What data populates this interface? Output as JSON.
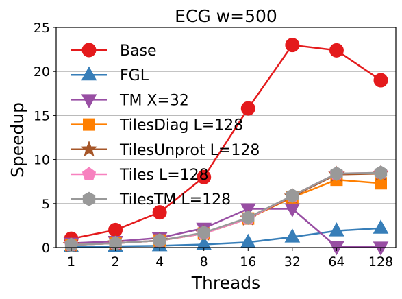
{
  "chart_data": {
    "type": "line",
    "title": "ECG w=500",
    "xlabel": "Threads",
    "ylabel": "Speedup",
    "categories": [
      "1",
      "2",
      "4",
      "8",
      "16",
      "32",
      "64",
      "128"
    ],
    "ylim": [
      0,
      25
    ],
    "yticks": [
      0,
      5,
      10,
      15,
      20,
      25
    ],
    "grid": "horizontal",
    "legend_position": "upper-left",
    "series": [
      {
        "name": "Base",
        "color": "#e41a1c",
        "marker": "circle",
        "values": [
          1.0,
          2.0,
          4.0,
          8.0,
          15.8,
          23.0,
          22.4,
          19.0
        ]
      },
      {
        "name": "FGL",
        "color": "#377eb8",
        "marker": "triangle-up",
        "values": [
          0.1,
          0.15,
          0.2,
          0.35,
          0.6,
          1.2,
          1.9,
          2.2
        ]
      },
      {
        "name": "TM X=32",
        "color": "#984ea3",
        "marker": "triangle-down",
        "values": [
          0.5,
          0.7,
          1.1,
          2.2,
          4.4,
          4.4,
          0.1,
          0.05
        ]
      },
      {
        "name": "TilesDiag L=128",
        "color": "#ff7f00",
        "marker": "square",
        "values": [
          0.3,
          0.5,
          0.8,
          1.6,
          3.3,
          5.7,
          7.7,
          7.3
        ]
      },
      {
        "name": "TilesUnprot L=128",
        "color": "#a65628",
        "marker": "star",
        "values": [
          0.3,
          0.5,
          0.8,
          1.6,
          3.3,
          5.8,
          8.3,
          8.4
        ]
      },
      {
        "name": "Tiles L=128",
        "color": "#f781bf",
        "marker": "pentagon",
        "values": [
          0.3,
          0.5,
          0.8,
          1.6,
          3.3,
          5.9,
          8.4,
          8.5
        ]
      },
      {
        "name": "TilesTM L=128",
        "color": "#999999",
        "marker": "hexagon",
        "values": [
          0.3,
          0.5,
          0.8,
          1.7,
          3.4,
          5.9,
          8.4,
          8.5
        ]
      }
    ]
  }
}
